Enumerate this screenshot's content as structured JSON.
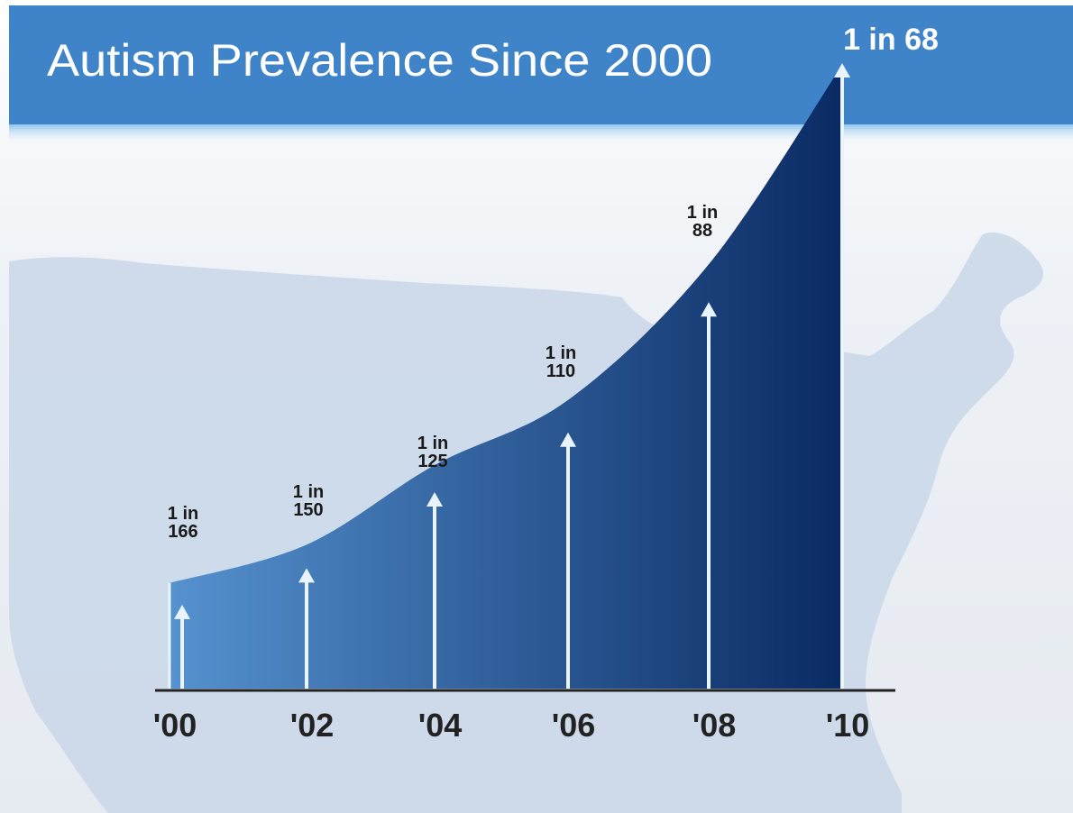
{
  "chart_data": {
    "type": "area",
    "title": "Autism Prevalence Since 2000",
    "categories": [
      "'00",
      "'02",
      "'04",
      "'06",
      "'08",
      "'10"
    ],
    "series": [
      {
        "labels": [
          "1 in\n166",
          "1 in\n150",
          "1 in\n125",
          "1 in\n110",
          "1 in\n88",
          "1 in 68"
        ],
        "denominators": [
          166,
          150,
          125,
          110,
          88,
          68
        ]
      }
    ],
    "legend": "none",
    "grid": false
  },
  "colors": {
    "header": "#3f84c9",
    "header_stripe": "#8fc6ee",
    "background": "#e9edf3",
    "map": "#c9d7e8",
    "area_light": "#5592cf",
    "area_dark": "#0a2a63",
    "arrow": "#e9f4ff",
    "axis": "#222222",
    "label": "#1a1a1a"
  }
}
